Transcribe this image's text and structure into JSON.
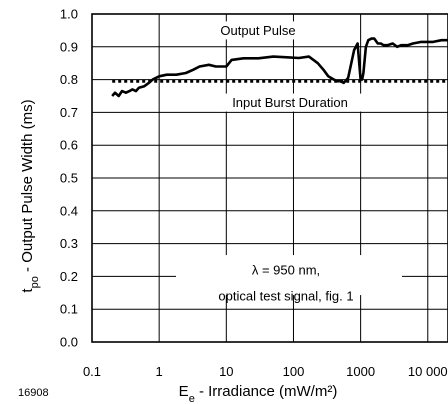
{
  "chart_data": {
    "type": "line",
    "xscale": "log",
    "xlim": [
      0.1,
      20000
    ],
    "ylim": [
      0.0,
      1.0
    ],
    "grid": true,
    "x_ticks": [
      0.1,
      1,
      10,
      100,
      1000,
      10000
    ],
    "x_tick_labels": [
      "0.1",
      "1",
      "10",
      "100",
      "1000",
      "10 000"
    ],
    "y_ticks": [
      0.0,
      0.1,
      0.2,
      0.3,
      0.4,
      0.5,
      0.6,
      0.7,
      0.8,
      0.9,
      1.0
    ],
    "y_tick_labels": [
      "0.0",
      "0.1",
      "0.2",
      "0.3",
      "0.4",
      "0.5",
      "0.6",
      "0.7",
      "0.8",
      "0.9",
      "1.0"
    ],
    "ylabel_main": "t",
    "ylabel_sub": "po",
    "ylabel_rest": " - Output Pulse Width (ms)",
    "xlabel_main": "E",
    "xlabel_sub": "e",
    "xlabel_rest": " - Irradiance (mW/m²)",
    "series": [
      {
        "name": "Output Pulse",
        "style": "solid",
        "x": [
          0.2,
          0.22,
          0.25,
          0.28,
          0.32,
          0.36,
          0.4,
          0.45,
          0.5,
          0.6,
          0.7,
          0.8,
          1.0,
          1.3,
          1.8,
          2.5,
          3.2,
          4.0,
          5.5,
          7.0,
          10,
          12,
          18,
          30,
          50,
          80,
          120,
          170,
          230,
          280,
          330,
          400,
          450,
          500,
          560,
          650,
          800,
          900,
          1000,
          1050,
          1100,
          1200,
          1300,
          1450,
          1600,
          1800,
          2000,
          2200,
          2500,
          3000,
          3500,
          4000,
          5000,
          6000,
          8000,
          10000,
          12000,
          16000,
          20000
        ],
        "y": [
          0.75,
          0.76,
          0.75,
          0.765,
          0.76,
          0.765,
          0.77,
          0.765,
          0.775,
          0.78,
          0.79,
          0.8,
          0.81,
          0.815,
          0.815,
          0.82,
          0.83,
          0.84,
          0.845,
          0.84,
          0.84,
          0.86,
          0.865,
          0.865,
          0.87,
          0.868,
          0.866,
          0.87,
          0.85,
          0.83,
          0.81,
          0.8,
          0.795,
          0.795,
          0.79,
          0.805,
          0.89,
          0.91,
          0.8,
          0.8,
          0.82,
          0.9,
          0.92,
          0.925,
          0.925,
          0.91,
          0.91,
          0.905,
          0.905,
          0.91,
          0.9,
          0.905,
          0.905,
          0.91,
          0.915,
          0.915,
          0.915,
          0.92,
          0.92
        ]
      },
      {
        "name": "Input Burst Duration",
        "style": "dotted",
        "x": [
          0.2,
          20000
        ],
        "y": [
          0.795,
          0.795
        ]
      }
    ],
    "annotations": {
      "output_pulse": "Output Pulse",
      "input_burst": "Input Burst Duration",
      "test_line1": "λ = 950 nm,",
      "test_line2": "optical test signal, fig. 1"
    },
    "figure_number": "16908"
  }
}
